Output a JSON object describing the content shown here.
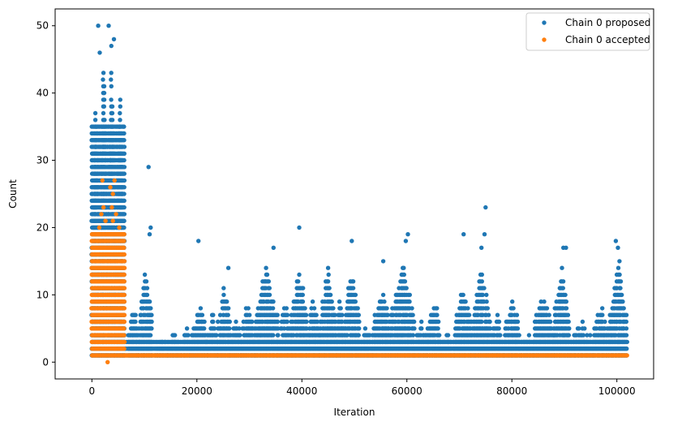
{
  "chart_data": {
    "type": "scatter",
    "title": "",
    "xlabel": "Iteration",
    "ylabel": "Count",
    "xlim": [
      -7000,
      107000
    ],
    "ylim": [
      -2.5,
      52.5
    ],
    "xticks": [
      0,
      20000,
      40000,
      60000,
      80000,
      100000
    ],
    "xtick_labels": [
      "0",
      "20000",
      "40000",
      "60000",
      "80000",
      "100000"
    ],
    "yticks": [
      0,
      10,
      20,
      30,
      40,
      50
    ],
    "ytick_labels": [
      "0",
      "10",
      "20",
      "30",
      "40",
      "50"
    ],
    "grid": false,
    "legend_position": "top-right",
    "series": [
      {
        "name": "Chain 0 proposed",
        "color": "#1f77b4",
        "bands": [
          {
            "x_start": 0,
            "x_end": 6200,
            "y_min": 1,
            "y_max": 35
          },
          {
            "x_start": 6200,
            "x_end": 102000,
            "y_min": 1,
            "y_max": 3
          }
        ],
        "clusters": [
          {
            "x_start": 0,
            "x_end": 1500,
            "y_max": 39
          },
          {
            "x_start": 1500,
            "x_end": 3000,
            "y_max": 46
          },
          {
            "x_start": 3000,
            "x_end": 4500,
            "y_max": 45
          },
          {
            "x_start": 4500,
            "x_end": 6200,
            "y_max": 41
          },
          {
            "x_start": 7000,
            "x_end": 9000,
            "y_max": 8
          },
          {
            "x_start": 9000,
            "x_end": 11500,
            "y_max": 13
          },
          {
            "x_start": 12000,
            "x_end": 14500,
            "y_max": 3
          },
          {
            "x_start": 14500,
            "x_end": 17000,
            "y_max": 4
          },
          {
            "x_start": 17000,
            "x_end": 19000,
            "y_max": 5
          },
          {
            "x_start": 19000,
            "x_end": 22000,
            "y_max": 8
          },
          {
            "x_start": 22000,
            "x_end": 24000,
            "y_max": 6
          },
          {
            "x_start": 24000,
            "x_end": 26500,
            "y_max": 11
          },
          {
            "x_start": 26500,
            "x_end": 28500,
            "y_max": 6
          },
          {
            "x_start": 28500,
            "x_end": 31000,
            "y_max": 8
          },
          {
            "x_start": 31000,
            "x_end": 35500,
            "y_max": 13
          },
          {
            "x_start": 35500,
            "x_end": 38000,
            "y_max": 8
          },
          {
            "x_start": 38000,
            "x_end": 41000,
            "y_max": 13
          },
          {
            "x_start": 41000,
            "x_end": 43500,
            "y_max": 9
          },
          {
            "x_start": 43500,
            "x_end": 46500,
            "y_max": 13
          },
          {
            "x_start": 46500,
            "x_end": 48000,
            "y_max": 9
          },
          {
            "x_start": 48000,
            "x_end": 51000,
            "y_max": 13
          },
          {
            "x_start": 51000,
            "x_end": 53500,
            "y_max": 5
          },
          {
            "x_start": 53500,
            "x_end": 57000,
            "y_max": 10
          },
          {
            "x_start": 57000,
            "x_end": 61500,
            "y_max": 14
          },
          {
            "x_start": 61500,
            "x_end": 64000,
            "y_max": 6
          },
          {
            "x_start": 64000,
            "x_end": 66500,
            "y_max": 9
          },
          {
            "x_start": 66500,
            "x_end": 69000,
            "y_max": 4
          },
          {
            "x_start": 69000,
            "x_end": 72500,
            "y_max": 10
          },
          {
            "x_start": 72500,
            "x_end": 76000,
            "y_max": 13
          },
          {
            "x_start": 76000,
            "x_end": 78500,
            "y_max": 6
          },
          {
            "x_start": 78500,
            "x_end": 81500,
            "y_max": 9
          },
          {
            "x_start": 81500,
            "x_end": 84000,
            "y_max": 4
          },
          {
            "x_start": 84000,
            "x_end": 88000,
            "y_max": 9
          },
          {
            "x_start": 88000,
            "x_end": 91000,
            "y_max": 13
          },
          {
            "x_start": 91000,
            "x_end": 95500,
            "y_max": 5
          },
          {
            "x_start": 95500,
            "x_end": 98500,
            "y_max": 8
          },
          {
            "x_start": 98500,
            "x_end": 102000,
            "y_max": 13
          }
        ],
        "outliers": [
          {
            "x": 1200,
            "y": 50
          },
          {
            "x": 3200,
            "y": 50
          },
          {
            "x": 4200,
            "y": 48
          },
          {
            "x": 1500,
            "y": 46
          },
          {
            "x": 3700,
            "y": 47
          },
          {
            "x": 2200,
            "y": 43
          },
          {
            "x": 10800,
            "y": 29
          },
          {
            "x": 11200,
            "y": 20
          },
          {
            "x": 11000,
            "y": 19
          },
          {
            "x": 20300,
            "y": 18
          },
          {
            "x": 39500,
            "y": 20
          },
          {
            "x": 34600,
            "y": 17
          },
          {
            "x": 49500,
            "y": 18
          },
          {
            "x": 60200,
            "y": 19
          },
          {
            "x": 59800,
            "y": 18
          },
          {
            "x": 70800,
            "y": 19
          },
          {
            "x": 75000,
            "y": 23
          },
          {
            "x": 74800,
            "y": 19
          },
          {
            "x": 74200,
            "y": 17
          },
          {
            "x": 89800,
            "y": 17
          },
          {
            "x": 90300,
            "y": 17
          },
          {
            "x": 99800,
            "y": 18
          },
          {
            "x": 100200,
            "y": 17
          },
          {
            "x": 55500,
            "y": 15
          },
          {
            "x": 100500,
            "y": 15
          },
          {
            "x": 26000,
            "y": 14
          },
          {
            "x": 45000,
            "y": 14
          }
        ]
      },
      {
        "name": "Chain 0 accepted",
        "color": "#ff7f0e",
        "bands": [
          {
            "x_start": 0,
            "x_end": 6200,
            "y_min": 1,
            "y_max": 19
          },
          {
            "x_start": 6200,
            "x_end": 102000,
            "y_min": 1,
            "y_max": 1
          }
        ],
        "outliers": [
          {
            "x": 3000,
            "y": 0
          },
          {
            "x": 2000,
            "y": 27
          },
          {
            "x": 4300,
            "y": 27
          },
          {
            "x": 4000,
            "y": 25
          },
          {
            "x": 3500,
            "y": 26
          },
          {
            "x": 2200,
            "y": 23
          },
          {
            "x": 3800,
            "y": 23
          },
          {
            "x": 1800,
            "y": 22
          },
          {
            "x": 4600,
            "y": 22
          },
          {
            "x": 2600,
            "y": 21
          },
          {
            "x": 4000,
            "y": 21
          },
          {
            "x": 1400,
            "y": 20
          },
          {
            "x": 5200,
            "y": 20
          }
        ]
      }
    ]
  }
}
